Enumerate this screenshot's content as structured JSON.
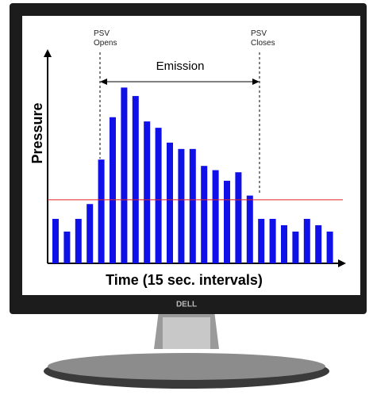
{
  "chart_data": {
    "type": "bar",
    "x_label": "Time (15 sec. intervals)",
    "y_label": "Pressure",
    "annotations": [
      "PSV",
      "Opens",
      "PSV",
      "Closes",
      "Emission"
    ],
    "brand": "DELL",
    "categories": [
      null,
      null,
      null,
      null,
      null,
      null,
      null,
      null,
      null,
      null,
      null,
      null,
      null,
      null,
      null,
      null,
      null,
      null,
      null,
      null,
      null,
      null,
      null,
      null,
      null
    ],
    "values": [
      21,
      15,
      21,
      28,
      49,
      69,
      83,
      79,
      67,
      64,
      57,
      54,
      54,
      46,
      44,
      39,
      43,
      32,
      21,
      21,
      18,
      15,
      21,
      18,
      15
    ],
    "color": "#1010e8",
    "threshold": 30,
    "threshold_color": "#e02020",
    "ylim": [
      0,
      100
    ]
  }
}
